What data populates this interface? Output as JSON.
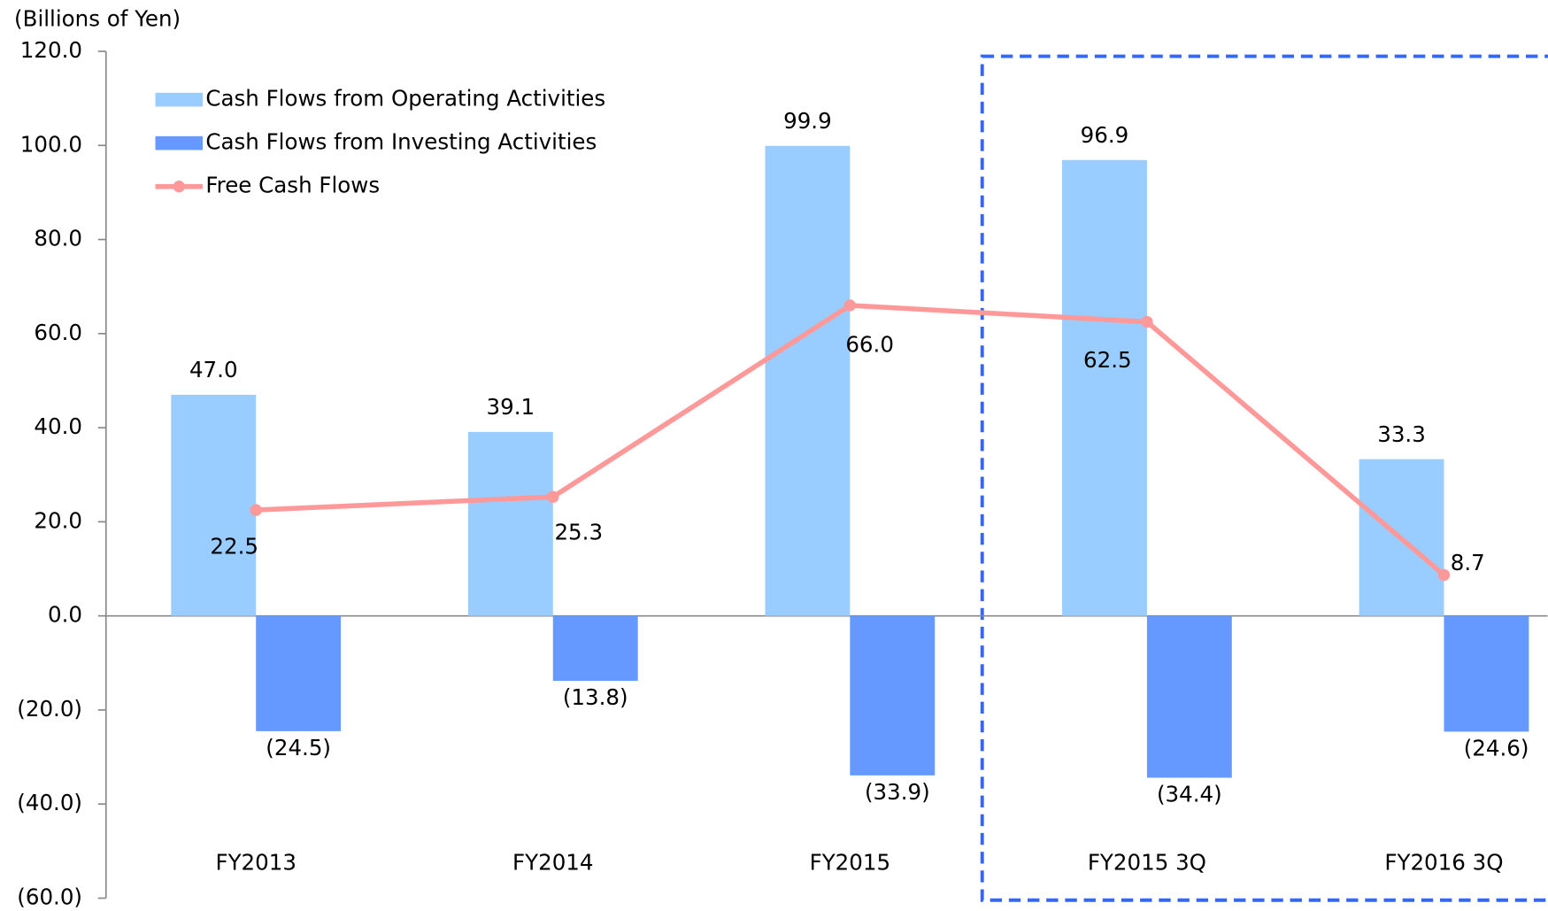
{
  "chart_data": {
    "type": "bar",
    "y_label": "(Billions of Yen)",
    "categories": [
      "FY2013",
      "FY2014",
      "FY2015",
      "FY2015 3Q",
      "FY2016 3Q"
    ],
    "series": [
      {
        "name": "Cash Flows from Operating Activities",
        "color": "#99ccff",
        "type": "bar",
        "values": [
          47.0,
          39.1,
          99.9,
          96.9,
          33.3
        ],
        "value_labels": [
          "47.0",
          "39.1",
          "99.9",
          "96.9",
          "33.3"
        ]
      },
      {
        "name": "Cash Flows from Investing Activities",
        "color": "#6699ff",
        "type": "bar",
        "values": [
          -24.5,
          -13.8,
          -33.9,
          -34.4,
          -24.6
        ],
        "value_labels": [
          "(24.5)",
          "(13.8)",
          "(33.9)",
          "(34.4)",
          "(24.6)"
        ]
      },
      {
        "name": "Free Cash Flows",
        "color": "#ff9999",
        "type": "line",
        "values": [
          22.5,
          25.3,
          66.0,
          62.5,
          8.7
        ],
        "value_labels": [
          "22.5",
          "25.3",
          "66.0",
          "62.5",
          "8.7"
        ]
      }
    ],
    "ylim": [
      -60,
      120
    ],
    "yticks": [
      {
        "value": -60,
        "label": "(60.0)"
      },
      {
        "value": -40,
        "label": "(40.0)"
      },
      {
        "value": -20,
        "label": "(20.0)"
      },
      {
        "value": 0,
        "label": "0.0"
      },
      {
        "value": 20,
        "label": "20.0"
      },
      {
        "value": 40,
        "label": "40.0"
      },
      {
        "value": 60,
        "label": "60.0"
      },
      {
        "value": 80,
        "label": "80.0"
      },
      {
        "value": 100,
        "label": "100.0"
      },
      {
        "value": 120,
        "label": "120.0"
      }
    ],
    "legend": "upper left"
  }
}
